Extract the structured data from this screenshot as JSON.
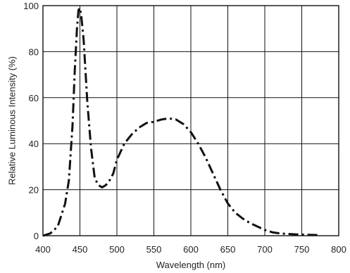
{
  "chart_data": {
    "type": "line",
    "xlabel": "Wavelength (nm)",
    "ylabel": "Relative Luminous Intensity (%)",
    "xlim": [
      400,
      800
    ],
    "ylim": [
      0,
      100
    ],
    "xticks": [
      400,
      450,
      500,
      550,
      600,
      650,
      700,
      750,
      800
    ],
    "yticks": [
      0,
      20,
      40,
      60,
      80,
      100
    ],
    "grid": true,
    "line_style": "dash-dot",
    "line_color": "#111111",
    "series": [
      {
        "x": [
          400,
          410,
          420,
          430,
          435,
          440,
          443,
          446,
          448,
          450,
          452,
          455,
          460,
          465,
          470,
          475,
          480,
          485,
          490,
          495,
          500,
          510,
          520,
          530,
          540,
          550,
          560,
          570,
          580,
          590,
          600,
          610,
          620,
          630,
          640,
          650,
          660,
          670,
          680,
          690,
          700,
          710,
          720,
          730,
          740,
          750,
          760,
          770,
          775
        ],
        "y": [
          0,
          1,
          4,
          14,
          24,
          48,
          72,
          90,
          98,
          99,
          95,
          85,
          58,
          38,
          25,
          22,
          21,
          22,
          24,
          27,
          33,
          40,
          44,
          47,
          49,
          49.5,
          50.5,
          51,
          50.5,
          48.5,
          45,
          40,
          34,
          27,
          20,
          14,
          10,
          7.5,
          5.5,
          4,
          2.5,
          1.5,
          1,
          0.8,
          0.6,
          0.5,
          0.4,
          0.3,
          0.2
        ]
      }
    ]
  }
}
